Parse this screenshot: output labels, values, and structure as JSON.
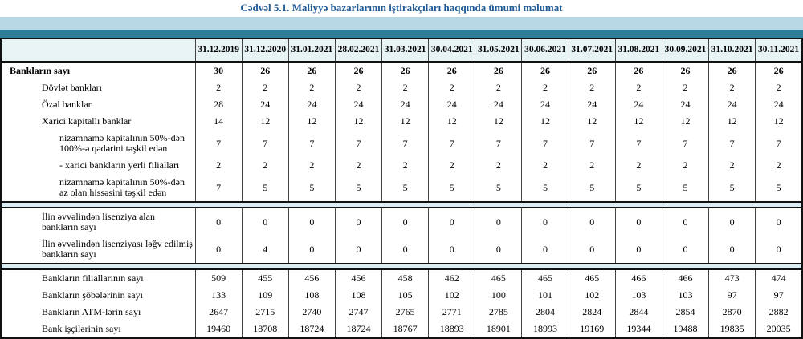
{
  "page_title": "Cədvəl 5.1. Maliyyə bazarlarının iştirakçıları haqqında ümumi məlumat",
  "colors": {
    "title_color": "#1E5A96",
    "band_light": "#B7D8E4",
    "band_teal": "#2E7E99",
    "header_bg": "#E8F3F6",
    "separator_bg": "#DCEDF3",
    "border_dark": "#111111",
    "grid_line": "#444444"
  },
  "chart_data": {
    "type": "table",
    "title": "Cədvəl 5.1. Maliyyə bazarlarının iştirakçıları haqqında ümumi məlumat",
    "corner_header": "",
    "columns": [
      "31.12.2019",
      "31.12.2020",
      "31.01.2021",
      "28.02.2021",
      "31.03.2021",
      "30.04.2021",
      "31.05.2021",
      "30.06.2021",
      "31.07.2021",
      "31.08.2021",
      "30.09.2021",
      "31.10.2021",
      "30.11.2021"
    ],
    "sections": [
      {
        "name": "banks-count",
        "rows": [
          {
            "label": "Bankların sayı",
            "indent": 0,
            "bold": true,
            "values": [
              30,
              26,
              26,
              26,
              26,
              26,
              26,
              26,
              26,
              26,
              26,
              26,
              26
            ]
          },
          {
            "label": "Dövlət bankları",
            "indent": 1,
            "bold": false,
            "values": [
              2,
              2,
              2,
              2,
              2,
              2,
              2,
              2,
              2,
              2,
              2,
              2,
              2
            ]
          },
          {
            "label": "Özəl banklar",
            "indent": 1,
            "bold": false,
            "values": [
              28,
              24,
              24,
              24,
              24,
              24,
              24,
              24,
              24,
              24,
              24,
              24,
              24
            ]
          },
          {
            "label": "Xarici kapitallı banklar",
            "indent": 1,
            "bold": false,
            "values": [
              14,
              12,
              12,
              12,
              12,
              12,
              12,
              12,
              12,
              12,
              12,
              12,
              12
            ]
          },
          {
            "label": "nizamnamə kapitalının 50%-dən 100%-ə qədərini təşkil edən",
            "indent": 2,
            "bold": false,
            "values": [
              7,
              7,
              7,
              7,
              7,
              7,
              7,
              7,
              7,
              7,
              7,
              7,
              7
            ]
          },
          {
            "label": "-  xarici bankların yerli filialları",
            "indent": 2,
            "bold": false,
            "values": [
              2,
              2,
              2,
              2,
              2,
              2,
              2,
              2,
              2,
              2,
              2,
              2,
              2
            ]
          },
          {
            "label": "nizamnamə kapitalının 50%-dən az olan hissəsini  təşkil edən",
            "indent": 2,
            "bold": false,
            "values": [
              7,
              5,
              5,
              5,
              5,
              5,
              5,
              5,
              5,
              5,
              5,
              5,
              5
            ]
          }
        ]
      },
      {
        "name": "licenses",
        "rows": [
          {
            "label": "İlin əvvəlindən lisenziya alan bankların sayı",
            "indent": 1,
            "bold": false,
            "values": [
              0,
              0,
              0,
              0,
              0,
              0,
              0,
              0,
              0,
              0,
              0,
              0,
              0
            ]
          },
          {
            "label": "İlin əvvəlindən lisenziyası ləğv edilmiş bankların sayı",
            "indent": 1,
            "bold": false,
            "values": [
              0,
              4,
              0,
              0,
              0,
              0,
              0,
              0,
              0,
              0,
              0,
              0,
              0
            ]
          }
        ]
      },
      {
        "name": "infrastructure",
        "rows": [
          {
            "label": "Bankların filiallarının sayı",
            "indent": 1,
            "bold": false,
            "values": [
              509,
              455,
              456,
              456,
              458,
              462,
              465,
              465,
              465,
              466,
              466,
              473,
              474
            ]
          },
          {
            "label": "Bankların şöbələrinin sayı",
            "indent": 1,
            "bold": false,
            "values": [
              133,
              109,
              108,
              108,
              105,
              102,
              100,
              101,
              102,
              103,
              103,
              97,
              97
            ]
          },
          {
            "label": "Bankların ATM-lərin sayı",
            "indent": 1,
            "bold": false,
            "values": [
              2647,
              2715,
              2740,
              2747,
              2765,
              2771,
              2785,
              2804,
              2824,
              2844,
              2854,
              2870,
              2882
            ]
          },
          {
            "label": "Bank işçilərinin sayı",
            "indent": 1,
            "bold": false,
            "values": [
              19460,
              18708,
              18724,
              18724,
              18767,
              18893,
              18901,
              18993,
              19169,
              19344,
              19488,
              19835,
              20035
            ]
          }
        ]
      }
    ]
  }
}
